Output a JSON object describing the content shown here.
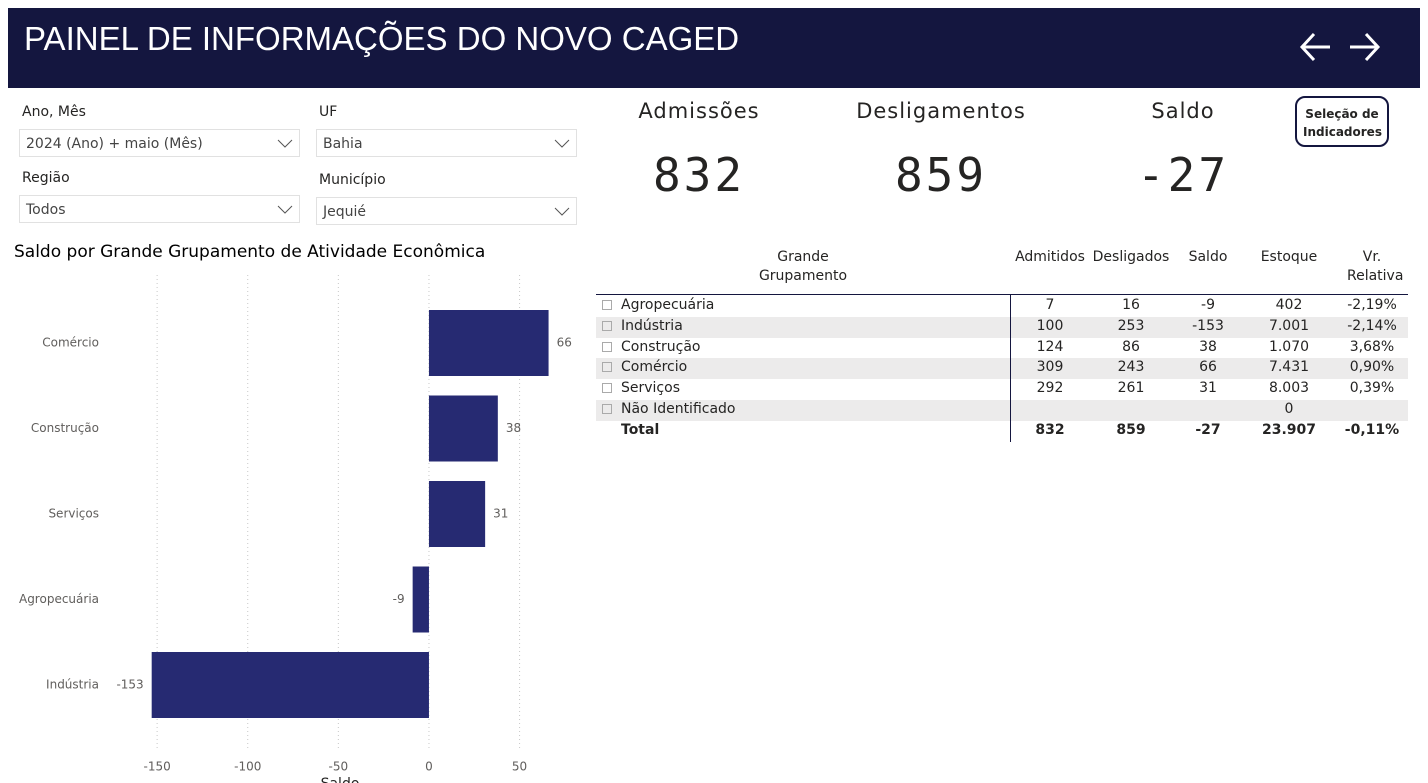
{
  "header": {
    "title": "PAINEL DE INFORMAÇÕES DO NOVO CAGED"
  },
  "filters": [
    {
      "label": "Ano, Mês",
      "value": "2024 (Ano) + maio (Mês)"
    },
    {
      "label": "UF",
      "value": "Bahia"
    },
    {
      "label": "Região",
      "value": "Todos"
    },
    {
      "label": "Município",
      "value": "Jequié"
    }
  ],
  "kpis": [
    {
      "label": "Admissões",
      "value": 832
    },
    {
      "label": "Desligamentos",
      "value": 859
    },
    {
      "label": "Saldo",
      "value": -27
    }
  ],
  "button": {
    "label": "Seleção de Indicadores"
  },
  "table": {
    "columns": [
      "Grande Grupamento",
      "Admitidos",
      "Desligados",
      "Saldo",
      "Estoque",
      "Vr. Relativa"
    ],
    "rows": [
      [
        "Agropecuária",
        "7",
        "16",
        "-9",
        "402",
        "-2,19%"
      ],
      [
        "Indústria",
        "100",
        "253",
        "-153",
        "7.001",
        "-2,14%"
      ],
      [
        "Construção",
        "124",
        "86",
        "38",
        "1.070",
        "3,68%"
      ],
      [
        "Comércio",
        "309",
        "243",
        "66",
        "7.431",
        "0,90%"
      ],
      [
        "Serviços",
        "292",
        "261",
        "31",
        "8.003",
        "0,39%"
      ],
      [
        "Não Identificado",
        null,
        null,
        null,
        "0",
        null
      ]
    ],
    "total": [
      "Total",
      "832",
      "859",
      "-27",
      "23.907",
      "-0,11%"
    ]
  },
  "chart_data": {
    "type": "bar",
    "orientation": "horizontal",
    "title": "Saldo por Grande Grupamento de Atividade Econômica",
    "x_label": "Saldo",
    "categories": [
      "Comércio",
      "Construção",
      "Serviços",
      "Agropecuária",
      "Indústria"
    ],
    "values": [
      66,
      38,
      31,
      -9,
      -153
    ],
    "color": "#262a72",
    "xlim": [
      -160,
      85
    ],
    "xticks": [
      -150,
      -100,
      -50,
      0,
      50
    ],
    "grid": true
  }
}
